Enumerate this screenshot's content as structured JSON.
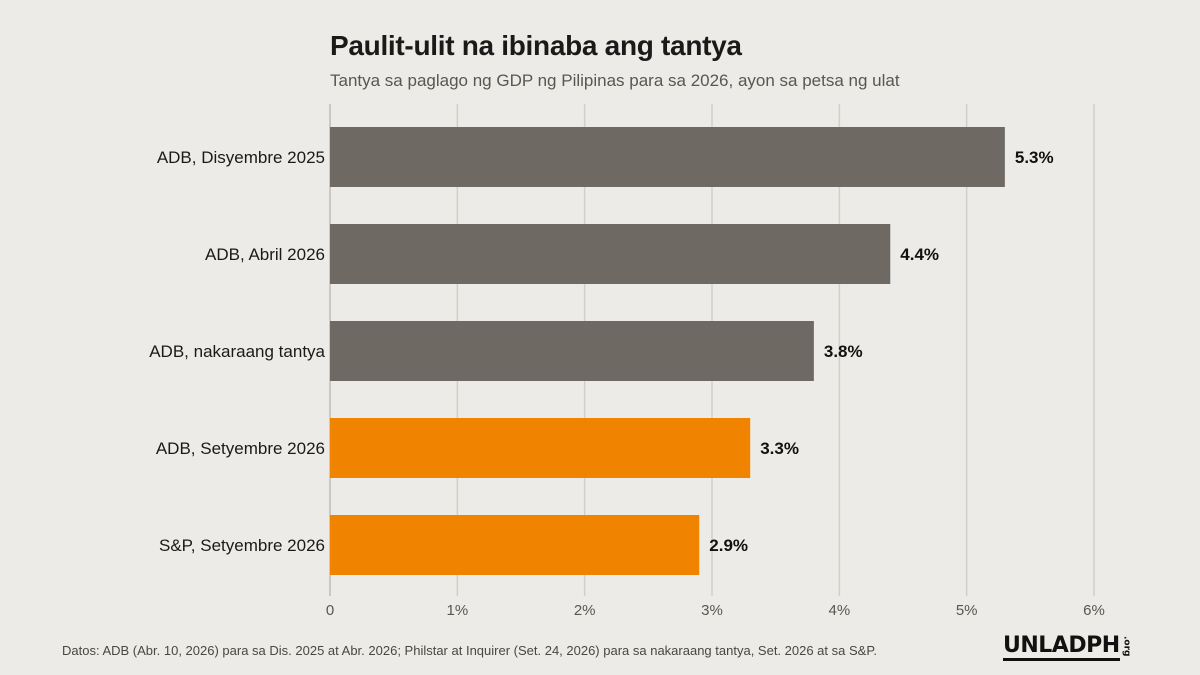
{
  "header": {
    "title": "Paulit-ulit na ibinaba ang tantya",
    "subtitle": "Tantya sa paglago ng GDP ng Pilipinas para sa 2026, ayon sa petsa ng ulat"
  },
  "footer": {
    "source": "Datos: ADB (Abr. 10, 2026) para sa Dis. 2025 at Abr. 2026; Philstar at Inquirer (Set. 24, 2026) para sa nakaraang tantya, Set. 2026 at sa S&P.",
    "logo_main": "UNLADPH",
    "logo_suffix": ".org"
  },
  "chart_data": {
    "type": "bar",
    "orientation": "horizontal",
    "categories": [
      "ADB, Disyembre 2025",
      "ADB, Abril 2026",
      "ADB, nakaraang tantya",
      "ADB, Setyembre 2026",
      "S&P, Setyembre 2026"
    ],
    "values": [
      5.3,
      4.4,
      3.8,
      3.3,
      2.9
    ],
    "value_labels": [
      "5.3%",
      "4.4%",
      "3.8%",
      "3.3%",
      "2.9%"
    ],
    "bar_colors": [
      "#6e6963",
      "#6e6963",
      "#6e6963",
      "#f08400",
      "#f08400"
    ],
    "xlim": [
      0,
      6
    ],
    "x_ticks": [
      0,
      1,
      2,
      3,
      4,
      5,
      6
    ],
    "x_tick_labels": [
      "0",
      "1%",
      "2%",
      "3%",
      "4%",
      "5%",
      "6%"
    ],
    "grid": "vertical",
    "xlabel": "",
    "ylabel": ""
  }
}
